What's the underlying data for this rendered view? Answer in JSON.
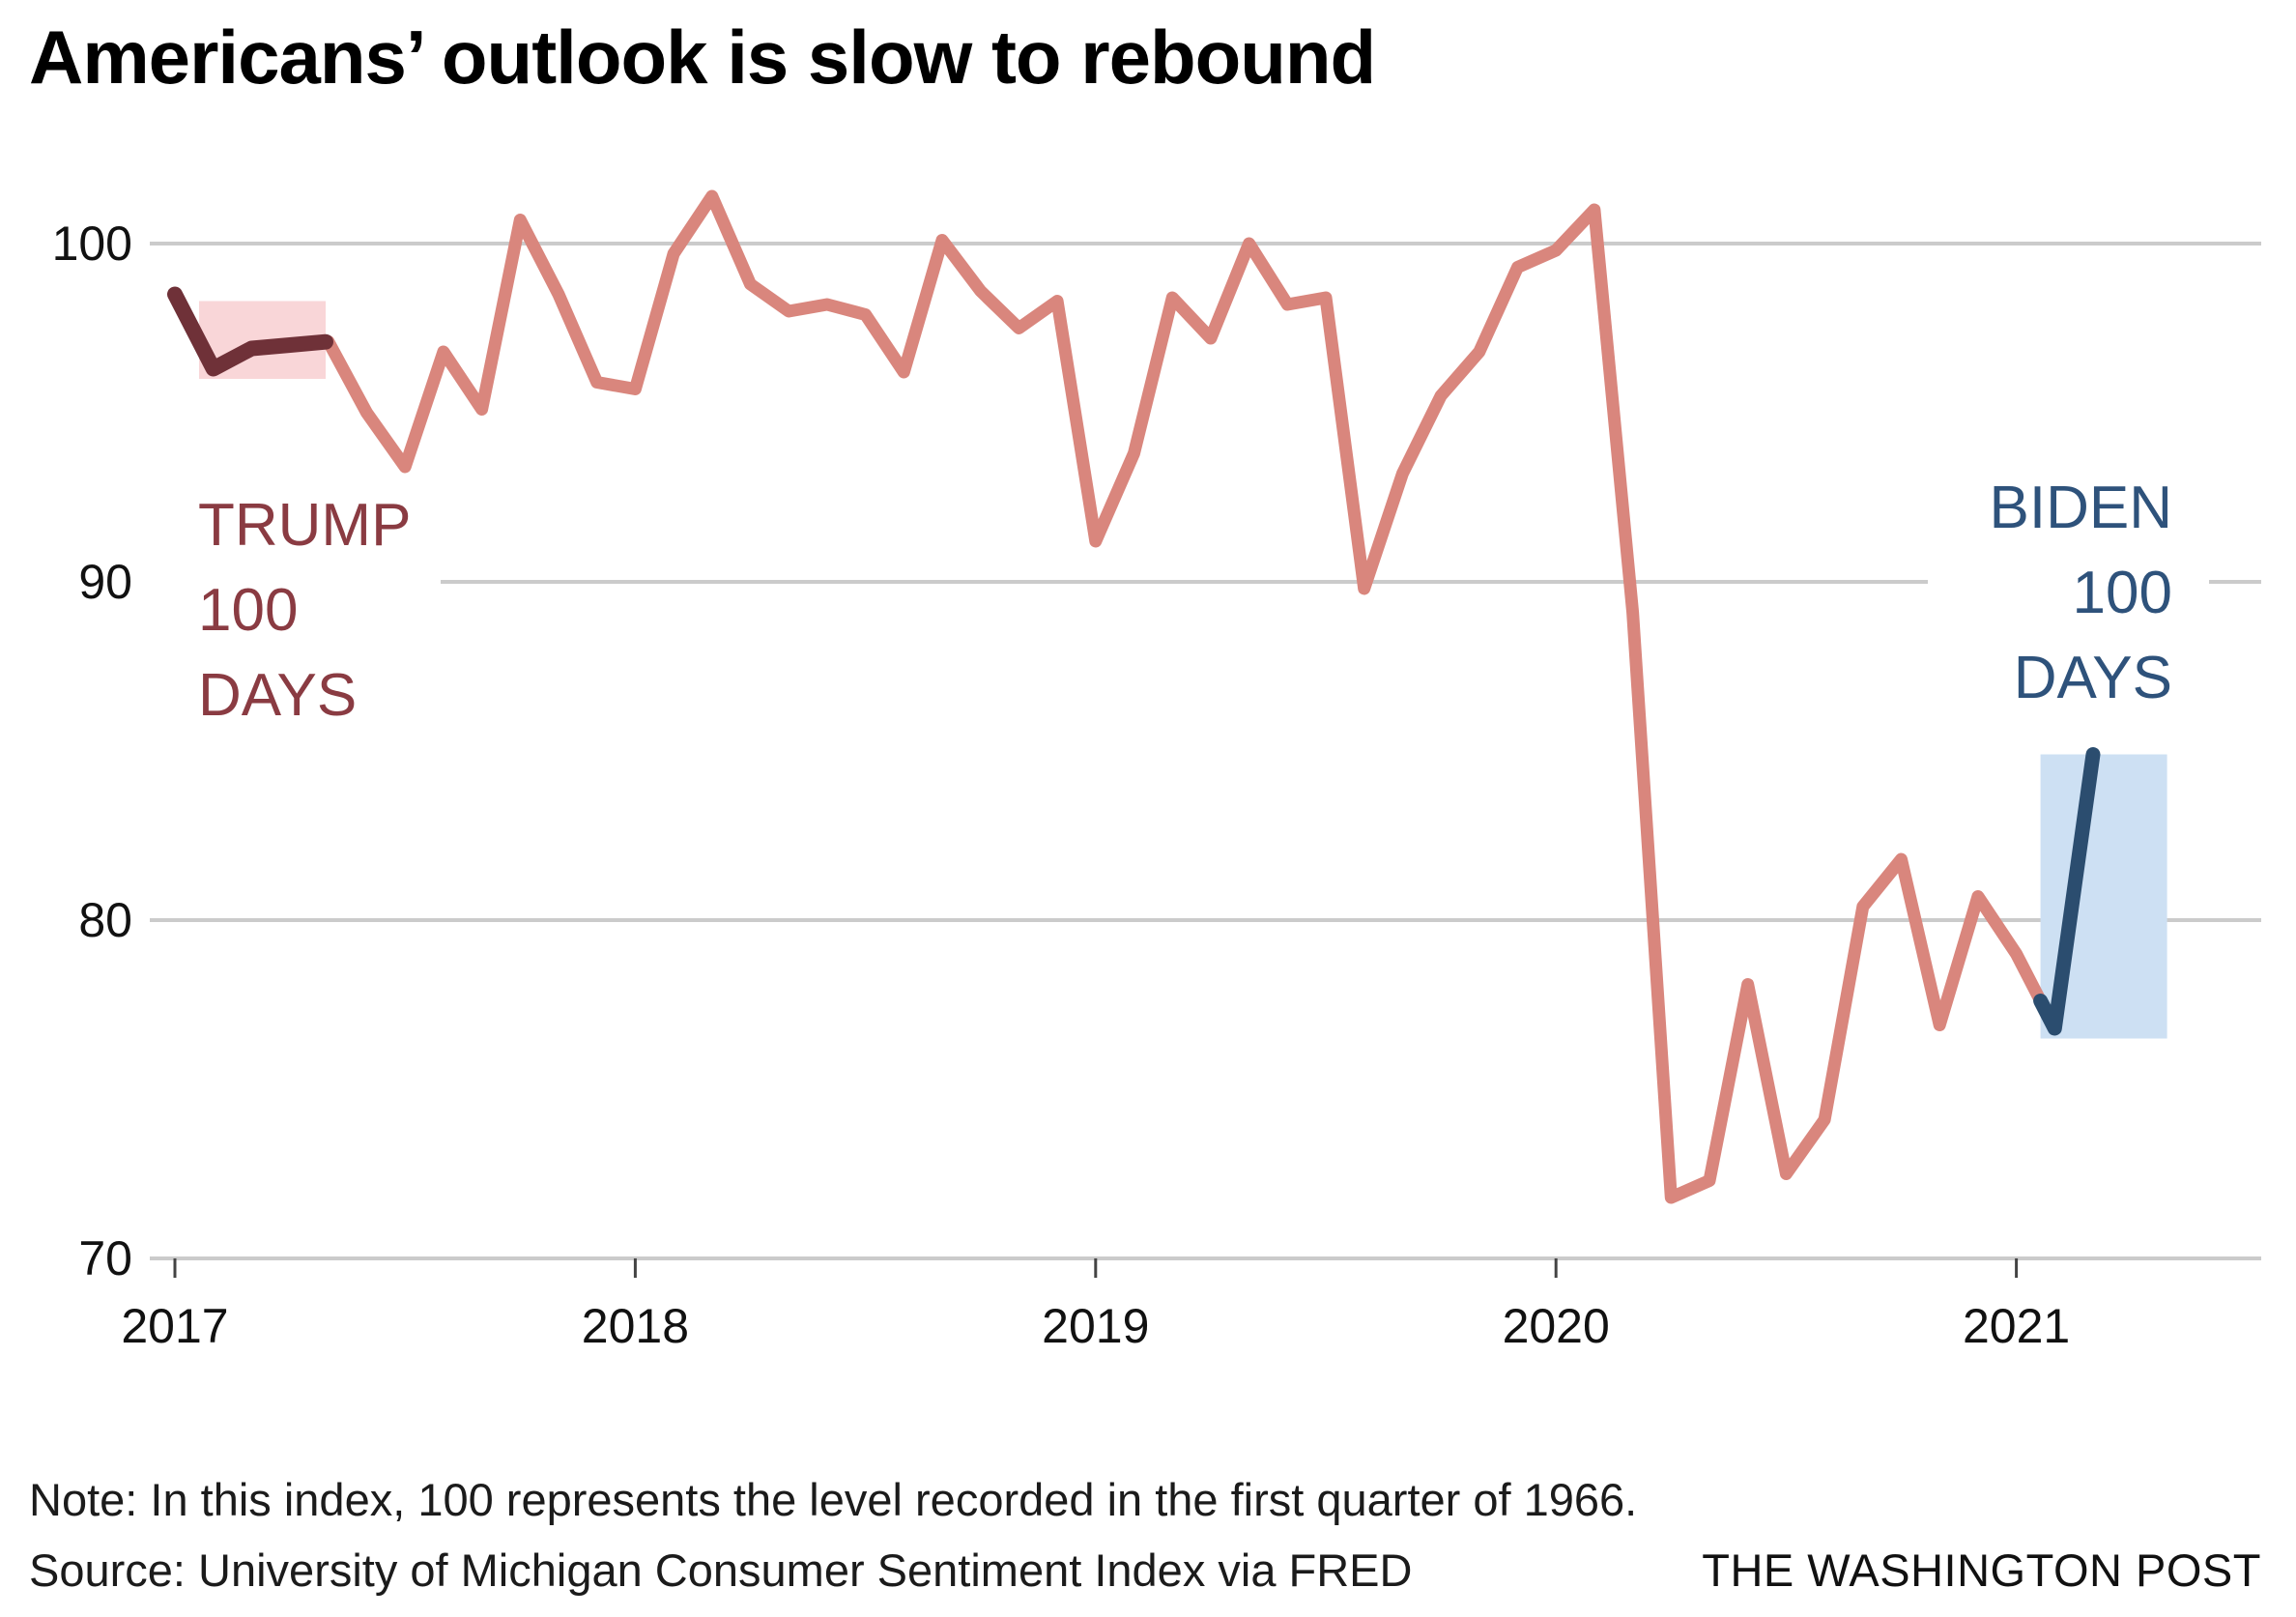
{
  "header": {
    "title": "Americans’ outlook is slow to rebound"
  },
  "annotations": {
    "trump": {
      "label": "TRUMP 100 DAYS",
      "lines": [
        "TRUMP",
        "100",
        "DAYS"
      ],
      "color": "#8a3b42"
    },
    "biden": {
      "label": "BIDEN 100 DAYS",
      "lines": [
        "BIDEN",
        "100",
        "DAYS"
      ],
      "color": "#2e527b"
    }
  },
  "footer": {
    "note": "Note: In this index, 100 represents the level recorded in the first quarter of 1966.",
    "source": "Source: University of Michigan Consumer Sentiment Index via FRED",
    "credit": "THE WASHINGTON POST"
  },
  "chart_data": {
    "type": "line",
    "title": "Americans’ outlook is slow to rebound",
    "xlabel": "",
    "ylabel": "",
    "x_start_month": "2017-01",
    "x_axis": {
      "tick_labels": [
        "2017",
        "2018",
        "2019",
        "2020",
        "2021"
      ],
      "tick_month_index": [
        0,
        12,
        24,
        36,
        48
      ]
    },
    "y_axis": {
      "tick_labels": [
        "100",
        "90",
        "80",
        "70"
      ],
      "tick_values": [
        100,
        90,
        80,
        70
      ],
      "min": 70,
      "max": 101.5,
      "grid": true
    },
    "legend_position": "none",
    "series": [
      {
        "name": "University of Michigan Consumer Sentiment Index",
        "color": "#d9867d",
        "monthly_values": [
          98.5,
          96.3,
          96.9,
          97.0,
          97.1,
          95.0,
          93.4,
          96.8,
          95.1,
          100.7,
          98.5,
          95.9,
          95.7,
          99.7,
          101.4,
          98.8,
          98.0,
          98.2,
          97.9,
          96.2,
          100.1,
          98.6,
          97.5,
          98.3,
          91.2,
          93.8,
          98.4,
          97.2,
          100.0,
          98.2,
          98.4,
          89.8,
          93.2,
          95.5,
          96.8,
          99.3,
          99.8,
          101.0,
          89.1,
          71.8,
          72.3,
          78.1,
          72.5,
          74.1,
          80.4,
          81.8,
          76.9,
          80.7,
          79.0,
          76.8,
          84.9
        ]
      }
    ],
    "overlay_segments": [
      {
        "name": "trump-100-days",
        "from_month": 0,
        "to_month": 3.93,
        "color": "#6f3138"
      },
      {
        "name": "biden-100-days",
        "from_month": 48.63,
        "to_month": 50,
        "color": "#2b4d6f"
      }
    ],
    "highlight_boxes": [
      {
        "name": "trump-100-days-box",
        "from_month": 0.63,
        "to_month": 3.93,
        "value_from": 96.0,
        "value_to": 98.3,
        "fill": "#f9d6d8"
      },
      {
        "name": "biden-100-days-box",
        "from_month": 48.63,
        "to_month": 51.93,
        "value_from": 76.5,
        "value_to": 84.9,
        "fill": "#cde0f3"
      }
    ],
    "gridline_color": "#cbcbcb",
    "tick_color": "#444444"
  }
}
